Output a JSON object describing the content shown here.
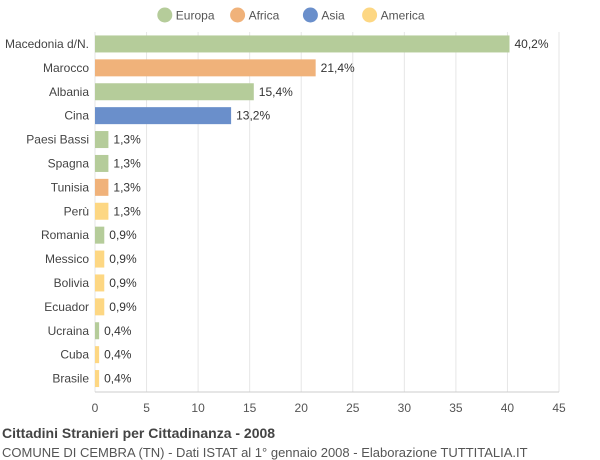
{
  "chart_data": {
    "type": "bar",
    "orientation": "horizontal",
    "categories": [
      "Macedonia d/N.",
      "Marocco",
      "Albania",
      "Cina",
      "Paesi Bassi",
      "Spagna",
      "Tunisia",
      "Perù",
      "Romania",
      "Messico",
      "Bolivia",
      "Ecuador",
      "Ucraina",
      "Cuba",
      "Brasile"
    ],
    "values": [
      40.2,
      21.4,
      15.4,
      13.2,
      1.3,
      1.3,
      1.3,
      1.3,
      0.9,
      0.9,
      0.9,
      0.9,
      0.4,
      0.4,
      0.4
    ],
    "value_labels": [
      "40,2%",
      "21,4%",
      "15,4%",
      "13,2%",
      "1,3%",
      "1,3%",
      "1,3%",
      "1,3%",
      "0,9%",
      "0,9%",
      "0,9%",
      "0,9%",
      "0,4%",
      "0,4%",
      "0,4%"
    ],
    "groups": [
      "Europa",
      "Africa",
      "Europa",
      "Asia",
      "Europa",
      "Europa",
      "Africa",
      "America",
      "Europa",
      "America",
      "America",
      "America",
      "Europa",
      "America",
      "America"
    ],
    "legend": [
      {
        "name": "Europa",
        "color": "#b5cc9a"
      },
      {
        "name": "Africa",
        "color": "#f0b27a"
      },
      {
        "name": "Asia",
        "color": "#6a8fcb"
      },
      {
        "name": "America",
        "color": "#fdd783"
      }
    ],
    "legend_position": "top-center",
    "xlim": [
      0,
      45
    ],
    "xticks": [
      0,
      5,
      10,
      15,
      20,
      25,
      30,
      35,
      40,
      45
    ],
    "grid": true,
    "title": "Cittadini Stranieri per Cittadinanza - 2008",
    "subtitle": "COMUNE DI CEMBRA (TN) - Dati ISTAT al 1° gennaio 2008 - Elaborazione TUTTITALIA.IT"
  }
}
